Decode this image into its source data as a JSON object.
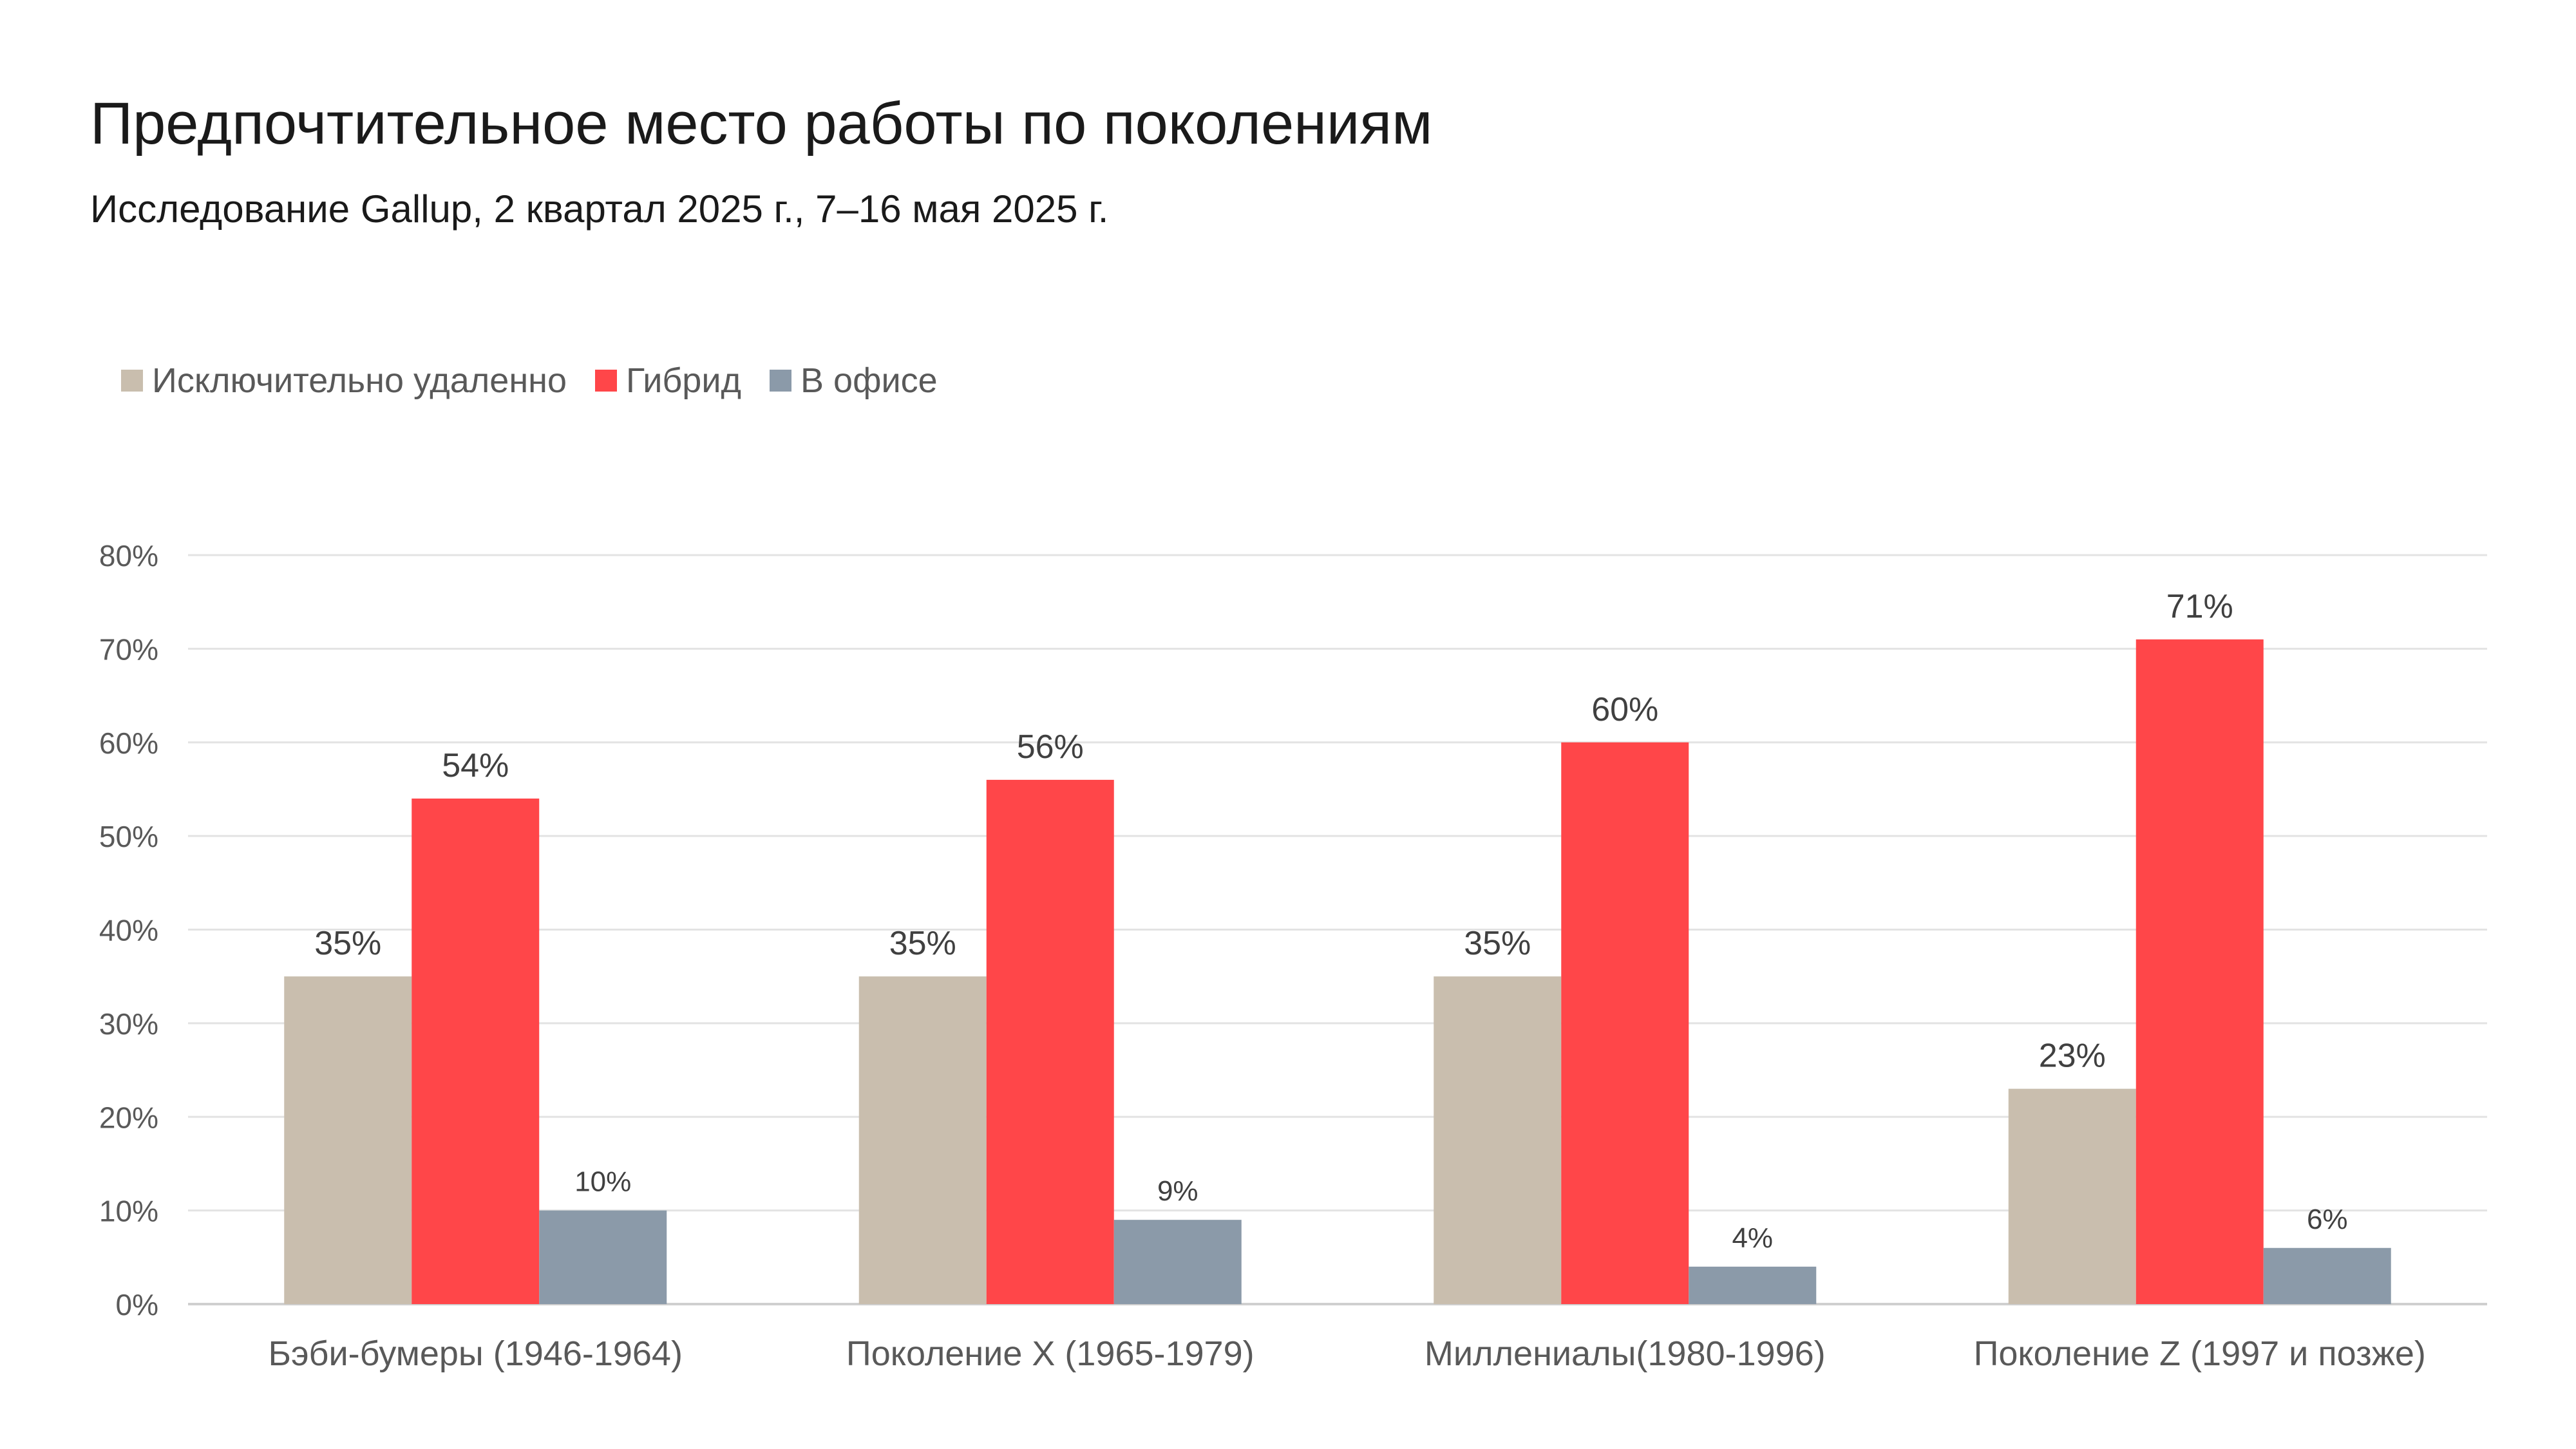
{
  "header": {
    "title": "Предпочтительное место работы по поколениям",
    "subtitle": "Исследование Gallup, 2 квартал 2025 г., 7–16 мая 2025 г."
  },
  "chart_data": {
    "type": "bar",
    "categories": [
      "Бэби-бумеры (1946-1964)",
      "Поколение X (1965-1979)",
      "Миллениалы(1980-1996)",
      "Поколение Z (1997 и позже)"
    ],
    "series": [
      {
        "name": "Исключительно удаленно",
        "color": "#C9BEAE",
        "values": [
          35,
          35,
          35,
          23
        ],
        "labels": [
          "35%",
          "35%",
          "35%",
          "23%"
        ]
      },
      {
        "name": "Гибрид",
        "color": "#FF4649",
        "values": [
          54,
          56,
          60,
          71
        ],
        "labels": [
          "54%",
          "56%",
          "60%",
          "71%"
        ]
      },
      {
        "name": "В офисе",
        "color": "#8B9AA9",
        "values": [
          10,
          9,
          4,
          6
        ],
        "labels": [
          "10%",
          "9%",
          "4%",
          "6%"
        ]
      }
    ],
    "ylim": [
      0,
      80
    ],
    "yticks": [
      "0%",
      "10%",
      "20%",
      "30%",
      "40%",
      "50%",
      "60%",
      "70%",
      "80%"
    ],
    "grid": true,
    "legend_position": "top-left"
  }
}
